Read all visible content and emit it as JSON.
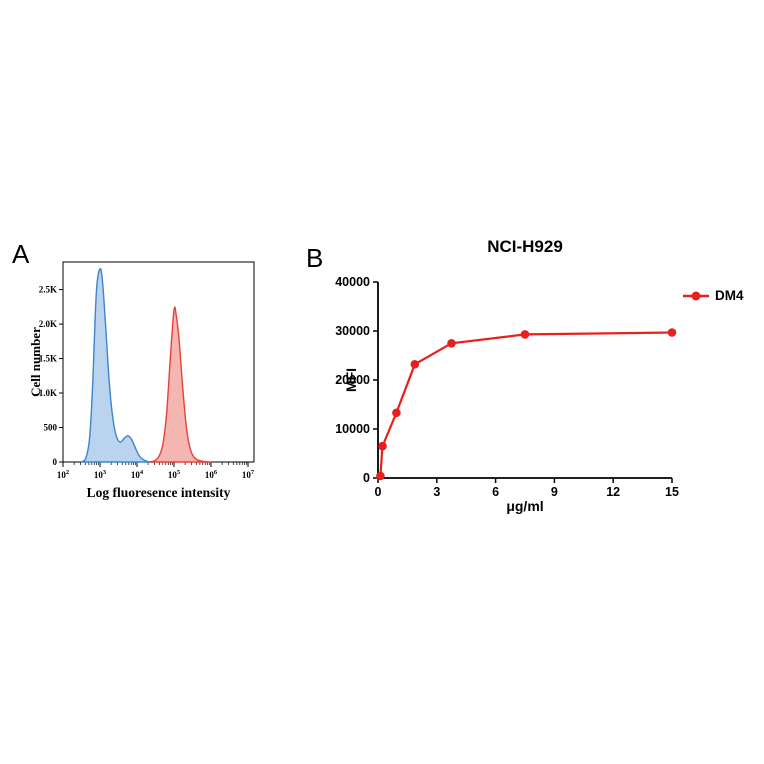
{
  "panels": {
    "a_label": "A",
    "b_label": "B"
  },
  "chart_data": [
    {
      "type": "area",
      "panel": "A",
      "subtype": "flow-cytometry-histogram",
      "xlabel": "Log fluoresence intensity",
      "ylabel": "Cell number",
      "x_scale": "log10",
      "x_ticks": [
        "10^2",
        "10^3",
        "10^4",
        "10^5",
        "10^6",
        "10^7"
      ],
      "x_range_log": [
        2,
        7.3
      ],
      "ylim": [
        0,
        2900
      ],
      "y_ticks": [
        0,
        500,
        1000,
        1500,
        2000,
        2500
      ],
      "y_tick_labels": [
        "0",
        "500",
        "1.0K",
        "1.5K",
        "2.0K",
        "2.5K"
      ],
      "grid": false,
      "series": [
        {
          "name": "blue-population",
          "color": "#3d85c8",
          "fill": "#aecdec",
          "points": [
            [
              2.5,
              0
            ],
            [
              2.62,
              60
            ],
            [
              2.72,
              350
            ],
            [
              2.8,
              1100
            ],
            [
              2.9,
              2450
            ],
            [
              3.0,
              2800
            ],
            [
              3.07,
              2600
            ],
            [
              3.15,
              2000
            ],
            [
              3.25,
              1150
            ],
            [
              3.35,
              620
            ],
            [
              3.45,
              360
            ],
            [
              3.55,
              290
            ],
            [
              3.65,
              340
            ],
            [
              3.75,
              380
            ],
            [
              3.85,
              330
            ],
            [
              3.95,
              210
            ],
            [
              4.05,
              100
            ],
            [
              4.15,
              40
            ],
            [
              4.3,
              5
            ],
            [
              4.45,
              0
            ]
          ]
        },
        {
          "name": "red-population",
          "color": "#e8413c",
          "fill": "#f3a9a4",
          "points": [
            [
              4.35,
              0
            ],
            [
              4.5,
              25
            ],
            [
              4.6,
              90
            ],
            [
              4.7,
              260
            ],
            [
              4.8,
              700
            ],
            [
              4.9,
              1500
            ],
            [
              5.0,
              2200
            ],
            [
              5.06,
              2130
            ],
            [
              5.14,
              1750
            ],
            [
              5.24,
              1050
            ],
            [
              5.34,
              480
            ],
            [
              5.44,
              190
            ],
            [
              5.54,
              70
            ],
            [
              5.66,
              25
            ],
            [
              5.8,
              8
            ],
            [
              6.0,
              0
            ]
          ]
        }
      ]
    },
    {
      "type": "line",
      "panel": "B",
      "title": "NCI-H929",
      "xlabel": "μg/ml",
      "ylabel": "MFI",
      "xlim": [
        0,
        15
      ],
      "ylim": [
        0,
        40000
      ],
      "x_ticks": [
        0,
        3,
        6,
        9,
        12,
        15
      ],
      "y_ticks": [
        0,
        10000,
        20000,
        30000,
        40000
      ],
      "y_tick_labels": [
        "0",
        "10000",
        "20000",
        "30000",
        "40000"
      ],
      "grid": false,
      "legend": {
        "position": "right",
        "entries": [
          {
            "label": "DM4",
            "color": "#e8201c"
          }
        ]
      },
      "series": [
        {
          "name": "DM4",
          "color": "#e8201c",
          "marker": "circle",
          "x": [
            0.12,
            0.23,
            0.94,
            1.88,
            3.75,
            7.5,
            15
          ],
          "y": [
            400,
            6500,
            13300,
            23200,
            27500,
            29300,
            29700
          ]
        }
      ]
    }
  ]
}
